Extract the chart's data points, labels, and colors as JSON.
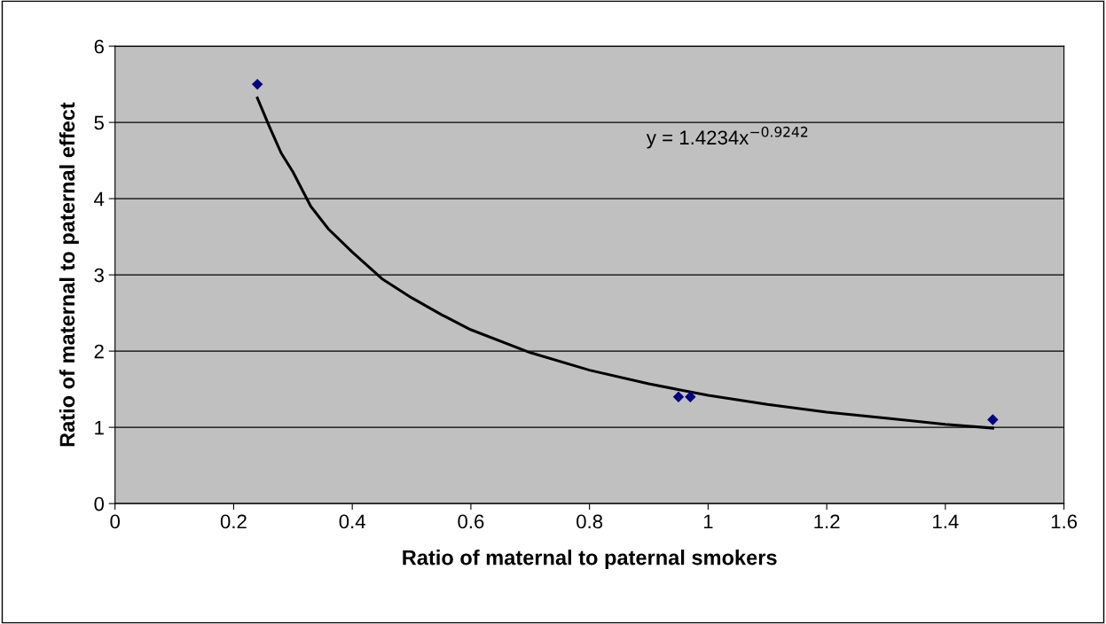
{
  "chart_data": {
    "type": "scatter",
    "xlabel": "Ratio of maternal to paternal smokers",
    "ylabel": "Ratio of maternal to paternal effect",
    "annotations": [
      "y = 1.4234x$^{−0.9242}$"
    ],
    "series": [
      {
        "color": "#000080",
        "marker": "diamond",
        "x": [
          0.24,
          0.95,
          0.97,
          1.48
        ],
        "values": [
          5.5,
          1.4,
          1.4,
          1.1
        ]
      },
      {
        "type": "line",
        "color": "#000000",
        "marker": "none",
        "line_style": "solid",
        "x": [
          0.24,
          0.26,
          0.28,
          0.3,
          0.33,
          0.36,
          0.4,
          0.45,
          0.5,
          0.55,
          0.6,
          0.7,
          0.8,
          0.9,
          1.0,
          1.1,
          1.2,
          1.3,
          1.4,
          1.48
        ],
        "values": [
          5.32,
          4.95,
          4.6,
          4.35,
          3.9,
          3.6,
          3.3,
          2.95,
          2.7,
          2.48,
          2.28,
          1.98,
          1.75,
          1.57,
          1.42,
          1.3,
          1.2,
          1.12,
          1.04,
          0.99
        ]
      }
    ],
    "xlim": [
      0,
      1.6
    ],
    "xticks": [
      0,
      0.2,
      0.4,
      0.6,
      0.8,
      1,
      1.2,
      1.4,
      1.6
    ],
    "ylim": [
      0,
      6
    ],
    "yticks": [
      0,
      1,
      2,
      3,
      4,
      5,
      6
    ],
    "grid": "y",
    "legend": false
  }
}
